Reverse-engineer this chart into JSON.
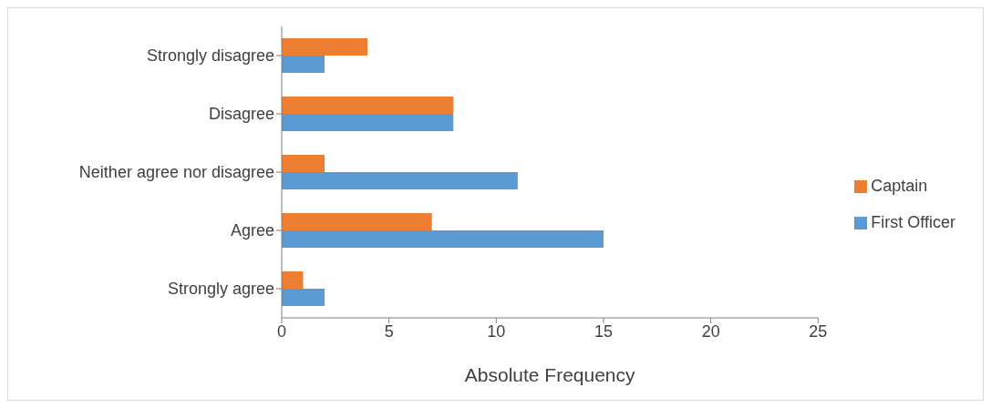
{
  "chart_data": {
    "type": "bar",
    "orientation": "horizontal",
    "xlabel": "Absolute Frequency",
    "categories": [
      "Strongly disagree",
      "Disagree",
      "Neither agree nor disagree",
      "Agree",
      "Strongly agree"
    ],
    "series": [
      {
        "name": "Captain",
        "color": "#ed7d31",
        "values": [
          4,
          8,
          2,
          7,
          1
        ]
      },
      {
        "name": "First Officer",
        "color": "#5b9bd5",
        "values": [
          2,
          8,
          11,
          15,
          2
        ]
      }
    ],
    "xlim": [
      0,
      25
    ],
    "xticks": [
      0,
      5,
      10,
      15,
      20,
      25
    ],
    "legend": "right",
    "grid": false
  }
}
